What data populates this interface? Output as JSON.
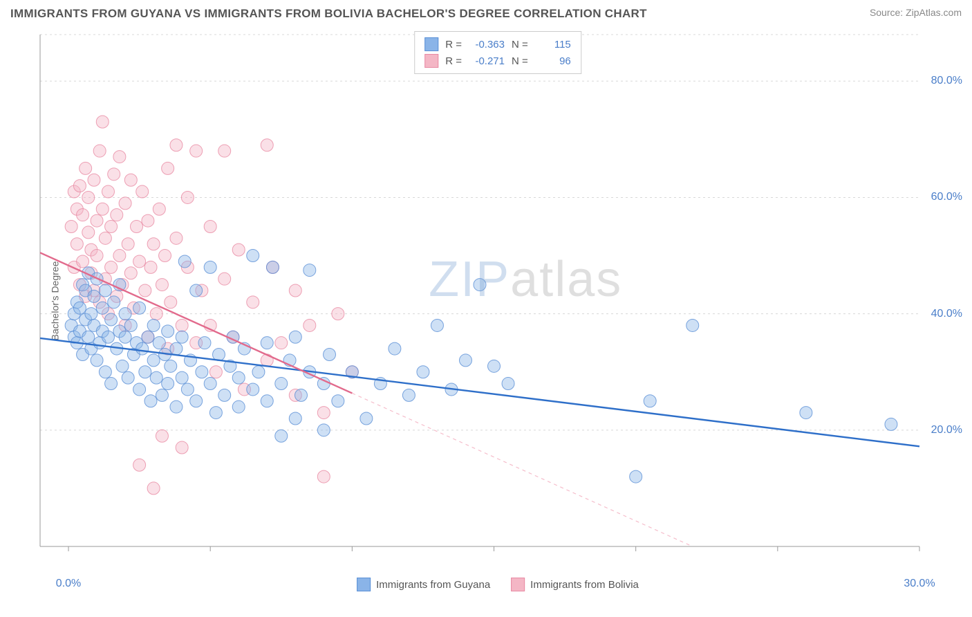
{
  "title": "IMMIGRANTS FROM GUYANA VS IMMIGRANTS FROM BOLIVIA BACHELOR'S DEGREE CORRELATION CHART",
  "source": "Source: ZipAtlas.com",
  "watermark_part1": "ZIP",
  "watermark_part2": "atlas",
  "chart": {
    "type": "scatter",
    "background_color": "#ffffff",
    "grid_color": "#d8d8d8",
    "axis_color": "#999999",
    "tick_label_color": "#4a7ec9",
    "y_axis_label": "Bachelor's Degree",
    "x_range": [
      -1,
      30
    ],
    "y_range": [
      0,
      88
    ],
    "x_ticks": [
      0,
      5,
      10,
      15,
      20,
      25,
      30
    ],
    "x_tick_labels_shown": {
      "0": "0.0%",
      "30": "30.0%"
    },
    "y_ticks": [
      20,
      40,
      60,
      80
    ],
    "y_tick_labels": {
      "20": "20.0%",
      "40": "40.0%",
      "60": "60.0%",
      "80": "80.0%"
    },
    "marker_radius": 9,
    "marker_opacity": 0.42,
    "line_width": 2.4
  },
  "series": [
    {
      "id": "guyana",
      "label": "Immigrants from Guyana",
      "color_fill": "#8ab4e8",
      "color_stroke": "#5a8fd6",
      "line_color": "#2e6fc9",
      "R": "-0.363",
      "N": "115",
      "regression": {
        "x1": -1,
        "y1": 35.8,
        "x2": 30,
        "y2": 17.2,
        "dashed_after_x": null
      },
      "points": [
        [
          0.1,
          38
        ],
        [
          0.2,
          36
        ],
        [
          0.2,
          40
        ],
        [
          0.3,
          42
        ],
        [
          0.3,
          35
        ],
        [
          0.4,
          37
        ],
        [
          0.4,
          41
        ],
        [
          0.5,
          45
        ],
        [
          0.5,
          33
        ],
        [
          0.6,
          39
        ],
        [
          0.6,
          44
        ],
        [
          0.7,
          36
        ],
        [
          0.7,
          47
        ],
        [
          0.8,
          34
        ],
        [
          0.8,
          40
        ],
        [
          0.9,
          38
        ],
        [
          0.9,
          43
        ],
        [
          1.0,
          32
        ],
        [
          1.0,
          46
        ],
        [
          1.1,
          35
        ],
        [
          1.2,
          37
        ],
        [
          1.2,
          41
        ],
        [
          1.3,
          30
        ],
        [
          1.3,
          44
        ],
        [
          1.4,
          36
        ],
        [
          1.5,
          39
        ],
        [
          1.5,
          28
        ],
        [
          1.6,
          42
        ],
        [
          1.7,
          34
        ],
        [
          1.8,
          37
        ],
        [
          1.8,
          45
        ],
        [
          1.9,
          31
        ],
        [
          2.0,
          36
        ],
        [
          2.0,
          40
        ],
        [
          2.1,
          29
        ],
        [
          2.2,
          38
        ],
        [
          2.3,
          33
        ],
        [
          2.4,
          35
        ],
        [
          2.5,
          27
        ],
        [
          2.5,
          41
        ],
        [
          2.6,
          34
        ],
        [
          2.7,
          30
        ],
        [
          2.8,
          36
        ],
        [
          2.9,
          25
        ],
        [
          3.0,
          38
        ],
        [
          3.0,
          32
        ],
        [
          3.1,
          29
        ],
        [
          3.2,
          35
        ],
        [
          3.3,
          26
        ],
        [
          3.4,
          33
        ],
        [
          3.5,
          37
        ],
        [
          3.5,
          28
        ],
        [
          3.6,
          31
        ],
        [
          3.8,
          34
        ],
        [
          3.8,
          24
        ],
        [
          4.0,
          29
        ],
        [
          4.0,
          36
        ],
        [
          4.1,
          49
        ],
        [
          4.2,
          27
        ],
        [
          4.3,
          32
        ],
        [
          4.5,
          25
        ],
        [
          4.5,
          44
        ],
        [
          4.7,
          30
        ],
        [
          4.8,
          35
        ],
        [
          5.0,
          28
        ],
        [
          5.0,
          48
        ],
        [
          5.2,
          23
        ],
        [
          5.3,
          33
        ],
        [
          5.5,
          26
        ],
        [
          5.7,
          31
        ],
        [
          5.8,
          36
        ],
        [
          6.0,
          24
        ],
        [
          6.0,
          29
        ],
        [
          6.2,
          34
        ],
        [
          6.5,
          27
        ],
        [
          6.5,
          50
        ],
        [
          6.7,
          30
        ],
        [
          7.0,
          25
        ],
        [
          7.0,
          35
        ],
        [
          7.2,
          48
        ],
        [
          7.5,
          19
        ],
        [
          7.5,
          28
        ],
        [
          7.8,
          32
        ],
        [
          8.0,
          22
        ],
        [
          8.0,
          36
        ],
        [
          8.2,
          26
        ],
        [
          8.5,
          30
        ],
        [
          8.5,
          47.5
        ],
        [
          9.0,
          20
        ],
        [
          9.0,
          28
        ],
        [
          9.2,
          33
        ],
        [
          9.5,
          25
        ],
        [
          10.0,
          30
        ],
        [
          10.5,
          22
        ],
        [
          11.0,
          28
        ],
        [
          11.5,
          34
        ],
        [
          12.0,
          26
        ],
        [
          12.5,
          30
        ],
        [
          13.0,
          38
        ],
        [
          13.5,
          27
        ],
        [
          14.0,
          32
        ],
        [
          14.5,
          45
        ],
        [
          15.0,
          31
        ],
        [
          15.5,
          28
        ],
        [
          20.0,
          12
        ],
        [
          20.5,
          25
        ],
        [
          22.0,
          38
        ],
        [
          26.0,
          23
        ],
        [
          29.0,
          21
        ]
      ]
    },
    {
      "id": "bolivia",
      "label": "Immigrants from Bolivia",
      "color_fill": "#f4b6c5",
      "color_stroke": "#e889a3",
      "line_color": "#e26a8c",
      "R": "-0.271",
      "N": "96",
      "regression": {
        "x1": -1,
        "y1": 50.5,
        "x2": 22,
        "y2": 0,
        "dashed_after_x": 10
      },
      "points": [
        [
          0.1,
          55
        ],
        [
          0.2,
          61
        ],
        [
          0.2,
          48
        ],
        [
          0.3,
          58
        ],
        [
          0.3,
          52
        ],
        [
          0.4,
          62
        ],
        [
          0.4,
          45
        ],
        [
          0.5,
          57
        ],
        [
          0.5,
          49
        ],
        [
          0.6,
          65
        ],
        [
          0.6,
          43
        ],
        [
          0.7,
          54
        ],
        [
          0.7,
          60
        ],
        [
          0.8,
          47
        ],
        [
          0.8,
          51
        ],
        [
          0.9,
          63
        ],
        [
          0.9,
          44
        ],
        [
          1.0,
          56
        ],
        [
          1.0,
          50
        ],
        [
          1.1,
          68
        ],
        [
          1.1,
          42
        ],
        [
          1.2,
          58
        ],
        [
          1.2,
          73
        ],
        [
          1.3,
          46
        ],
        [
          1.3,
          53
        ],
        [
          1.4,
          61
        ],
        [
          1.4,
          40
        ],
        [
          1.5,
          55
        ],
        [
          1.5,
          48
        ],
        [
          1.6,
          64
        ],
        [
          1.7,
          43
        ],
        [
          1.7,
          57
        ],
        [
          1.8,
          50
        ],
        [
          1.8,
          67
        ],
        [
          1.9,
          45
        ],
        [
          2.0,
          59
        ],
        [
          2.0,
          38
        ],
        [
          2.1,
          52
        ],
        [
          2.2,
          47
        ],
        [
          2.2,
          63
        ],
        [
          2.3,
          41
        ],
        [
          2.4,
          55
        ],
        [
          2.5,
          49
        ],
        [
          2.5,
          14
        ],
        [
          2.6,
          61
        ],
        [
          2.7,
          44
        ],
        [
          2.8,
          36
        ],
        [
          2.8,
          56
        ],
        [
          2.9,
          48
        ],
        [
          3.0,
          52
        ],
        [
          3.0,
          10
        ],
        [
          3.1,
          40
        ],
        [
          3.2,
          58
        ],
        [
          3.3,
          45
        ],
        [
          3.3,
          19
        ],
        [
          3.4,
          50
        ],
        [
          3.5,
          34
        ],
        [
          3.5,
          65
        ],
        [
          3.6,
          42
        ],
        [
          3.8,
          53
        ],
        [
          3.8,
          69
        ],
        [
          4.0,
          38
        ],
        [
          4.0,
          17
        ],
        [
          4.2,
          48
        ],
        [
          4.2,
          60
        ],
        [
          4.5,
          35
        ],
        [
          4.5,
          68
        ],
        [
          4.7,
          44
        ],
        [
          5.0,
          38
        ],
        [
          5.0,
          55
        ],
        [
          5.2,
          30
        ],
        [
          5.5,
          46
        ],
        [
          5.5,
          68
        ],
        [
          5.8,
          36
        ],
        [
          6.0,
          51
        ],
        [
          6.2,
          27
        ],
        [
          6.5,
          42
        ],
        [
          7.0,
          32
        ],
        [
          7.0,
          69
        ],
        [
          7.2,
          48
        ],
        [
          7.5,
          35
        ],
        [
          8.0,
          26
        ],
        [
          8.0,
          44
        ],
        [
          8.5,
          38
        ],
        [
          9.0,
          23
        ],
        [
          9.0,
          12
        ],
        [
          9.5,
          40
        ],
        [
          10.0,
          30
        ]
      ]
    }
  ],
  "legend_top": {
    "r_label": "R =",
    "n_label": "N ="
  }
}
